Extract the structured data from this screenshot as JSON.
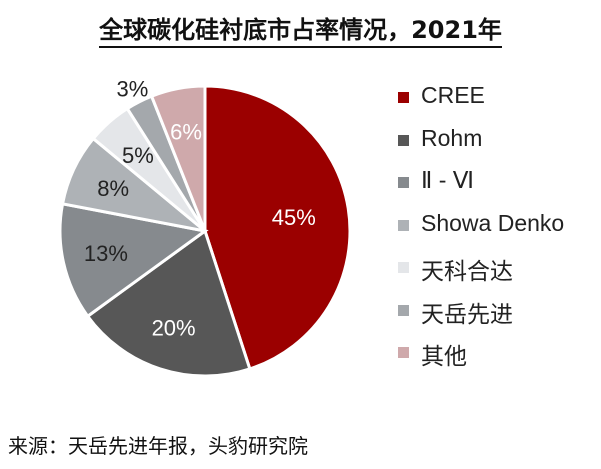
{
  "title": "全球碳化硅衬底市占率情况，2021年",
  "source": "来源：天岳先进年报，头豹研究院",
  "chart_data": {
    "type": "pie",
    "title": "全球碳化硅衬底市占率情况，2021年",
    "legend_position": "right",
    "slices": [
      {
        "name": "CREE",
        "value": 45,
        "label": "45%",
        "color": "#9b0000",
        "label_color": "#ffffff"
      },
      {
        "name": "Rohm",
        "value": 20,
        "label": "20%",
        "color": "#575757",
        "label_color": "#ffffff"
      },
      {
        "name": "Ⅱ - Ⅵ",
        "value": 13,
        "label": "13%",
        "color": "#868a8e",
        "label_color": "#222222"
      },
      {
        "name": "Showa Denko",
        "value": 8,
        "label": "8%",
        "color": "#aeb2b6",
        "label_color": "#222222"
      },
      {
        "name": "天科合达",
        "value": 5,
        "label": "5%",
        "color": "#e4e6e9",
        "label_color": "#222222"
      },
      {
        "name": "天岳先进",
        "value": 3,
        "label": "3%",
        "color": "#a4a8ac",
        "label_color": "#222222"
      },
      {
        "name": "其他",
        "value": 6,
        "label": "6%",
        "color": "#cfa9ab",
        "label_color": "#ffffff"
      }
    ]
  }
}
